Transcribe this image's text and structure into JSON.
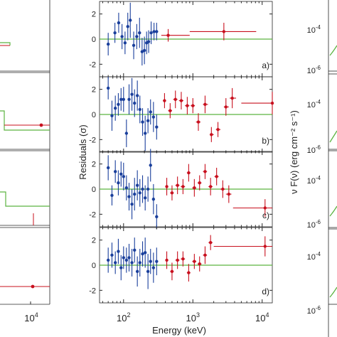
{
  "colors": {
    "axis": "#262626",
    "model": "#5cb341",
    "blue": "#1a3f9c",
    "red": "#c8101e",
    "grid": "#262626"
  },
  "center_axes": {
    "ylabel": "Residuals (σ)",
    "xlabel": "Energy (keV)",
    "xtick_labels": [
      "10",
      "10",
      "10"
    ],
    "xtick_exponents": [
      "2",
      "3",
      "4"
    ],
    "ytick_labels": [
      "2",
      "0",
      "-2"
    ]
  },
  "right_axes": {
    "ylabel": "ν F(ν) (erg cm⁻² s⁻¹)",
    "ytick_labels": [
      "10",
      "10"
    ],
    "ytick_exponents": [
      "-4",
      "-6"
    ]
  },
  "left_axes": {
    "xtick_labels": [
      "10"
    ],
    "xtick_exponents": [
      "4"
    ]
  },
  "chart_data": [
    {
      "type": "scatter",
      "panel": "a)",
      "xlabel": "",
      "ylabel": "Residuals (σ)",
      "xscale": "log",
      "xlim": [
        45,
        14000
      ],
      "ylim": [
        -3,
        3
      ],
      "series": [
        {
          "color": "blue",
          "points": [
            [
              60,
              -0.4,
              0.9
            ],
            [
              75,
              0.5,
              0.8
            ],
            [
              85,
              1.3,
              0.8
            ],
            [
              95,
              0.2,
              1
            ],
            [
              105,
              -0.3,
              0.9
            ],
            [
              115,
              1.0,
              1.1
            ],
            [
              125,
              1.5,
              1.4
            ],
            [
              140,
              -0.5,
              1.1
            ],
            [
              155,
              0.2,
              1.0
            ],
            [
              170,
              0.5,
              1.2
            ],
            [
              185,
              -1.0,
              1.1
            ],
            [
              200,
              -0.9,
              1.1
            ],
            [
              215,
              -0.3,
              0.9
            ],
            [
              230,
              -0.2,
              0.9
            ],
            [
              250,
              0.5,
              0.9
            ],
            [
              275,
              0.6,
              0.7
            ],
            [
              300,
              0.6,
              0.7
            ]
          ]
        },
        {
          "color": "red",
          "points": [
            [
              440,
              0.3,
              0.5
            ],
            [
              2800,
              0.6,
              0.7
            ]
          ],
          "xerr": [
            [
              350,
              900
            ],
            [
              900,
              8200
            ]
          ]
        }
      ]
    },
    {
      "type": "scatter",
      "panel": "b)",
      "xscale": "log",
      "xlim": [
        45,
        14000
      ],
      "ylim": [
        -3,
        3
      ],
      "series": [
        {
          "color": "blue",
          "points": [
            [
              60,
              2.1,
              0.9
            ],
            [
              68,
              -0.1,
              1.2
            ],
            [
              76,
              0.5,
              1.0
            ],
            [
              84,
              0.8,
              0.9
            ],
            [
              92,
              1.2,
              0.9
            ],
            [
              100,
              1.2,
              1.0
            ],
            [
              110,
              -1.5,
              1.1
            ],
            [
              120,
              1.2,
              1.2
            ],
            [
              132,
              1.6,
              1.3
            ],
            [
              144,
              0.9,
              1.1
            ],
            [
              158,
              1.5,
              1.2
            ],
            [
              172,
              0.4,
              1.1
            ],
            [
              188,
              -0.6,
              1.1
            ],
            [
              205,
              -1.5,
              1.4
            ],
            [
              225,
              -0.5,
              1.0
            ],
            [
              245,
              0.2,
              1.0
            ],
            [
              270,
              -0.2,
              1.2
            ],
            [
              300,
              -1.0,
              1.0
            ]
          ]
        },
        {
          "color": "red",
          "points": [
            [
              390,
              1.1,
              0.6
            ],
            [
              470,
              0.3,
              0.6
            ],
            [
              560,
              1.2,
              0.7
            ],
            [
              680,
              1.1,
              0.7
            ],
            [
              830,
              0.7,
              0.7
            ],
            [
              1000,
              0.7,
              0.6
            ],
            [
              1200,
              -0.6,
              0.7
            ],
            [
              1500,
              0.8,
              0.7
            ],
            [
              1850,
              -1.6,
              0.6
            ],
            [
              2300,
              -1.2,
              0.6
            ],
            [
              3000,
              0.6,
              0.7
            ],
            [
              3700,
              1.3,
              0.8
            ],
            [
              14000,
              0.9,
              0.9
            ]
          ],
          "xerr": [
            [
              370,
              410
            ],
            [
              440,
              500
            ],
            [
              520,
              600
            ],
            [
              630,
              730
            ],
            [
              770,
              890
            ],
            [
              930,
              1070
            ],
            [
              1110,
              1290
            ],
            [
              1400,
              1650
            ],
            [
              1750,
              2000
            ],
            [
              2150,
              2500
            ],
            [
              2800,
              3300
            ],
            [
              3400,
              4200
            ],
            [
              5000,
              14000
            ]
          ]
        }
      ]
    },
    {
      "type": "scatter",
      "panel": "c)",
      "xscale": "log",
      "xlim": [
        45,
        14000
      ],
      "ylim": [
        -3,
        3
      ],
      "series": [
        {
          "color": "blue",
          "points": [
            [
              60,
              1.7,
              1.0
            ],
            [
              68,
              -0.5,
              0.8
            ],
            [
              76,
              1.4,
              0.9
            ],
            [
              84,
              0.5,
              1.0
            ],
            [
              92,
              1.2,
              1.0
            ],
            [
              100,
              1.0,
              1.1
            ],
            [
              110,
              0.1,
              1.0
            ],
            [
              120,
              -0.6,
              1.1
            ],
            [
              132,
              -1.2,
              1.2
            ],
            [
              144,
              -0.4,
              1.3
            ],
            [
              158,
              0.3,
              1.2
            ],
            [
              172,
              -0.3,
              1.1
            ],
            [
              188,
              0.0,
              1.1
            ],
            [
              205,
              -0.7,
              1.0
            ],
            [
              225,
              0.0,
              1.0
            ],
            [
              245,
              1.9,
              1.3
            ],
            [
              270,
              -0.8,
              1.2
            ],
            [
              300,
              -2.2,
              1.0
            ]
          ]
        },
        {
          "color": "red",
          "points": [
            [
              420,
              0.2,
              0.7
            ],
            [
              500,
              -0.3,
              0.6
            ],
            [
              600,
              0.3,
              0.7
            ],
            [
              720,
              0.2,
              0.6
            ],
            [
              870,
              1.3,
              0.7
            ],
            [
              1050,
              0.1,
              0.7
            ],
            [
              1250,
              0.5,
              0.6
            ],
            [
              1500,
              1.4,
              0.6
            ],
            [
              1800,
              0.2,
              0.7
            ],
            [
              2200,
              1.0,
              0.7
            ],
            [
              2700,
              0.0,
              0.7
            ],
            [
              3300,
              -0.4,
              0.7
            ],
            [
              11000,
              -1.5,
              0.7
            ]
          ],
          "xerr": [
            [
              400,
              440
            ],
            [
              470,
              530
            ],
            [
              560,
              640
            ],
            [
              670,
              770
            ],
            [
              820,
              920
            ],
            [
              980,
              1120
            ],
            [
              1170,
              1330
            ],
            [
              1400,
              1600
            ],
            [
              1680,
              1920
            ],
            [
              2050,
              2350
            ],
            [
              2500,
              2900
            ],
            [
              3000,
              3600
            ],
            [
              3800,
              14000
            ]
          ]
        }
      ]
    },
    {
      "type": "scatter",
      "panel": "d)",
      "xscale": "log",
      "xlim": [
        45,
        14000
      ],
      "ylim": [
        -3,
        3
      ],
      "series": [
        {
          "color": "blue",
          "points": [
            [
              60,
              0.4,
              1.0
            ],
            [
              68,
              0.8,
              1.0
            ],
            [
              76,
              0.2,
              0.9
            ],
            [
              84,
              1.1,
              1.0
            ],
            [
              92,
              -0.2,
              1.0
            ],
            [
              100,
              0.6,
              0.9
            ],
            [
              110,
              0.4,
              1.0
            ],
            [
              120,
              0.6,
              1.1
            ],
            [
              132,
              0.2,
              1.1
            ],
            [
              144,
              1.2,
              1.0
            ],
            [
              158,
              -0.5,
              1.2
            ],
            [
              172,
              0.2,
              1.1
            ],
            [
              188,
              0.9,
              1.0
            ],
            [
              205,
              1.0,
              1.2
            ],
            [
              225,
              -0.5,
              1.4
            ],
            [
              245,
              0.3,
              1.0
            ],
            [
              270,
              -0.2,
              1.2
            ],
            [
              300,
              0.3,
              1.1
            ]
          ]
        },
        {
          "color": "red",
          "points": [
            [
              420,
              0.4,
              0.7
            ],
            [
              500,
              -0.5,
              0.7
            ],
            [
              600,
              0.4,
              0.7
            ],
            [
              720,
              0.5,
              0.6
            ],
            [
              870,
              -0.6,
              0.7
            ],
            [
              1050,
              0.3,
              0.6
            ],
            [
              1250,
              0.1,
              0.6
            ],
            [
              1500,
              0.8,
              0.7
            ],
            [
              1800,
              1.8,
              0.6
            ],
            [
              11000,
              1.5,
              0.8
            ]
          ],
          "xerr": [
            [
              400,
              440
            ],
            [
              470,
              530
            ],
            [
              560,
              640
            ],
            [
              670,
              770
            ],
            [
              820,
              920
            ],
            [
              980,
              1120
            ],
            [
              1170,
              1330
            ],
            [
              1400,
              1600
            ],
            [
              1680,
              1920
            ],
            [
              2000,
              14000
            ]
          ]
        }
      ]
    }
  ]
}
